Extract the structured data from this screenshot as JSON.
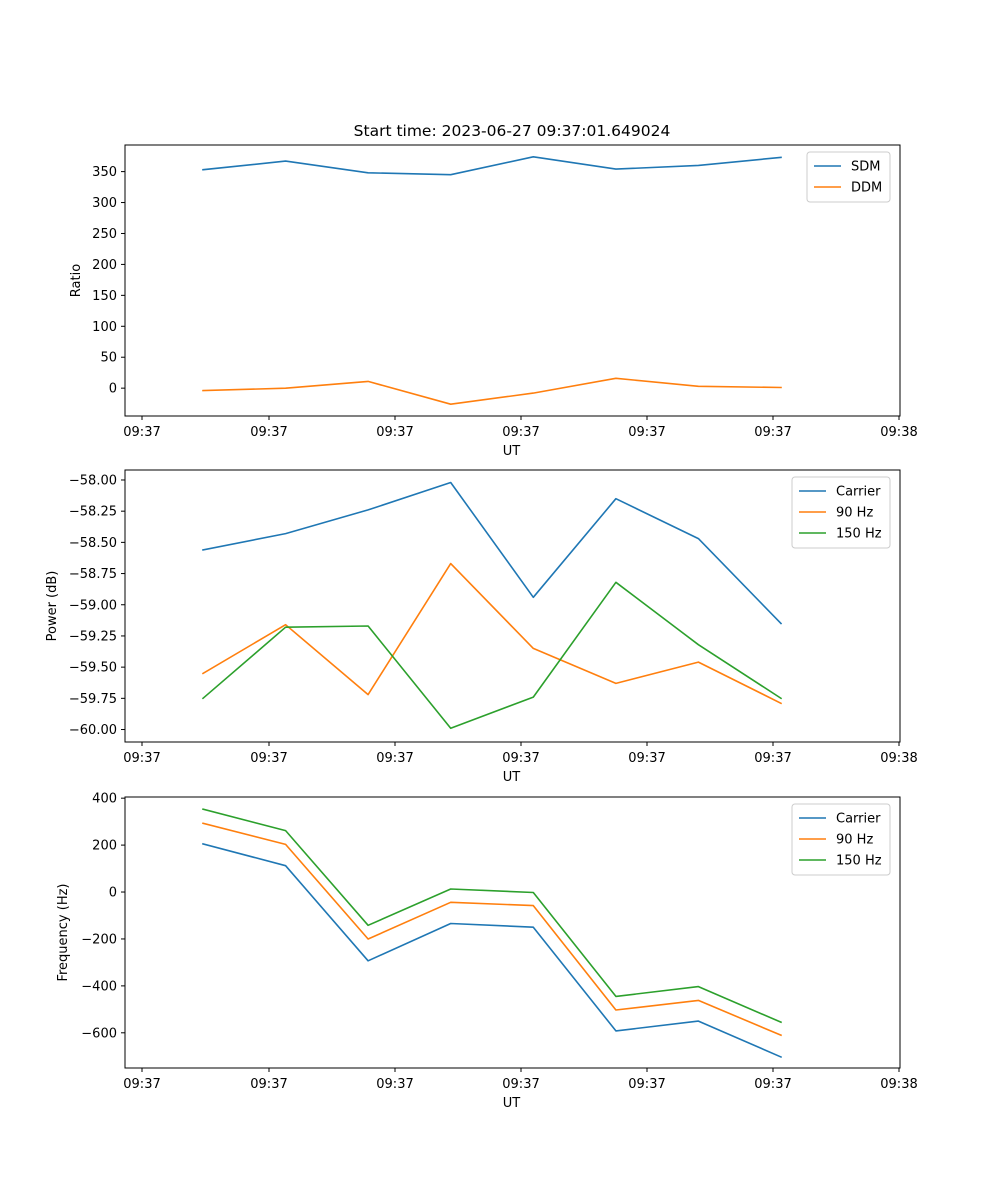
{
  "title": "Start time: 2023-06-27 09:37:01.649024",
  "chart_data": [
    {
      "type": "line",
      "xlabel": "UT",
      "ylabel": "Ratio",
      "x": [
        1,
        2,
        3,
        4,
        5,
        6,
        7,
        8
      ],
      "x_ticks": [
        "09:37",
        "09:37",
        "09:37",
        "09:37",
        "09:37",
        "09:37",
        "09:38"
      ],
      "y_ticks": [
        0,
        50,
        100,
        150,
        200,
        250,
        300,
        350
      ],
      "ylim": [
        -45,
        393
      ],
      "legend": "top-right",
      "series": [
        {
          "name": "SDM",
          "color": "#1f77b4",
          "values": [
            353,
            367,
            348,
            345,
            374,
            354,
            360,
            373
          ]
        },
        {
          "name": "DDM",
          "color": "#ff7f0e",
          "values": [
            -4,
            0,
            11,
            -26,
            -8,
            16,
            3,
            1
          ]
        }
      ]
    },
    {
      "type": "line",
      "xlabel": "UT",
      "ylabel": "Power (dB)",
      "x": [
        1,
        2,
        3,
        4,
        5,
        6,
        7,
        8
      ],
      "x_ticks": [
        "09:37",
        "09:37",
        "09:37",
        "09:37",
        "09:37",
        "09:37",
        "09:38"
      ],
      "y_ticks": [
        "−60.00",
        "−59.75",
        "−59.50",
        "−59.25",
        "−59.00",
        "−58.75",
        "−58.50",
        "−58.25",
        "−58.00"
      ],
      "y_tick_values": [
        -60.0,
        -59.75,
        -59.5,
        -59.25,
        -59.0,
        -58.75,
        -58.5,
        -58.25,
        -58.0
      ],
      "ylim": [
        -60.1,
        -57.92
      ],
      "legend": "top-right",
      "series": [
        {
          "name": "Carrier",
          "color": "#1f77b4",
          "values": [
            -58.56,
            -58.43,
            -58.24,
            -58.02,
            -58.94,
            -58.15,
            -58.47,
            -59.15
          ]
        },
        {
          "name": "90 Hz",
          "color": "#ff7f0e",
          "values": [
            -59.55,
            -59.16,
            -59.72,
            -58.67,
            -59.35,
            -59.63,
            -59.46,
            -59.79
          ]
        },
        {
          "name": "150 Hz",
          "color": "#2ca02c",
          "values": [
            -59.75,
            -59.18,
            -59.17,
            -59.99,
            -59.74,
            -58.82,
            -59.32,
            -59.75
          ]
        }
      ]
    },
    {
      "type": "line",
      "xlabel": "UT",
      "ylabel": "Frequency (Hz)",
      "x": [
        1,
        2,
        3,
        4,
        5,
        6,
        7,
        8
      ],
      "x_ticks": [
        "09:37",
        "09:37",
        "09:37",
        "09:37",
        "09:37",
        "09:37",
        "09:38"
      ],
      "y_ticks": [
        "−600",
        "−400",
        "−200",
        "0",
        "200",
        "400"
      ],
      "y_tick_values": [
        -600,
        -400,
        -200,
        0,
        200,
        400
      ],
      "ylim": [
        -750,
        405
      ],
      "legend": "top-right",
      "series": [
        {
          "name": "Carrier",
          "color": "#1f77b4",
          "values": [
            205,
            112,
            -293,
            -134,
            -150,
            -592,
            -550,
            -703
          ]
        },
        {
          "name": "90 Hz",
          "color": "#ff7f0e",
          "values": [
            293,
            203,
            -200,
            -44,
            -58,
            -503,
            -462,
            -610
          ]
        },
        {
          "name": "150 Hz",
          "color": "#2ca02c",
          "values": [
            353,
            262,
            -142,
            13,
            -2,
            -445,
            -403,
            -555
          ]
        }
      ]
    }
  ]
}
